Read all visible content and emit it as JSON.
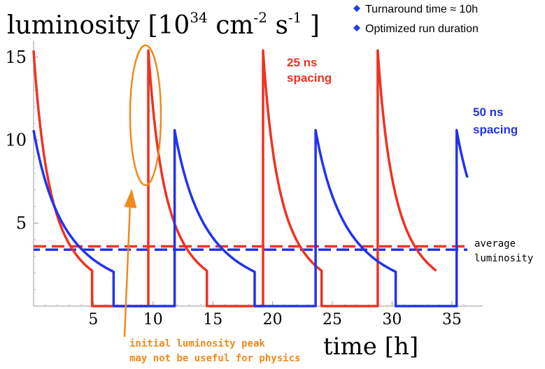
{
  "chart_data": {
    "type": "line",
    "title": "luminosity [10",
    "title_exp": "34",
    "title_unit1": " cm",
    "title_unit1_exp": "-2",
    "title_unit2": " s",
    "title_unit2_exp": "-1",
    "title_close": " ]",
    "xlabel": "time [h]",
    "ylabel": "",
    "xlim": [
      0,
      37
    ],
    "ylim": [
      0,
      16
    ],
    "x_ticks": [
      5,
      10,
      15,
      20,
      25,
      30,
      35
    ],
    "y_ticks": [
      5,
      10,
      15
    ],
    "legend": [
      "Turnaround time ≈ 10h",
      "Optimized run duration"
    ],
    "legend_color": "#1f3fd8",
    "series": [
      {
        "name": "25 ns spacing",
        "name_line1": "25 ns",
        "name_line2": "spacing",
        "color": "#ee3322",
        "peak": 15.4,
        "tau": 2.9,
        "cycles": [
          {
            "start": 0.0,
            "end": 4.9,
            "next": 9.6
          },
          {
            "start": 9.6,
            "end": 14.5,
            "next": 19.2
          },
          {
            "start": 19.2,
            "end": 24.1,
            "next": 28.8
          },
          {
            "start": 28.8,
            "end": 33.7,
            "next": null
          }
        ],
        "tail_end": 36.0
      },
      {
        "name": "50 ns spacing",
        "name_line1": "50 ns",
        "name_line2": "spacing",
        "color": "#2233ee",
        "peak": 10.6,
        "tau": 5.3,
        "cycles": [
          {
            "start": 0.0,
            "end": 6.7,
            "next": 11.8
          },
          {
            "start": 11.8,
            "end": 18.5,
            "next": 23.6
          },
          {
            "start": 23.6,
            "end": 30.3,
            "next": 35.4
          },
          {
            "start": 35.4,
            "end": 36.3,
            "next": null
          }
        ],
        "tail_end": 36.3
      }
    ],
    "average": {
      "label_line1": "average",
      "label_line2": "luminosity",
      "red_value": 3.6,
      "blue_value": 3.4
    },
    "annotation": {
      "text_line1": "initial luminosity peak",
      "text_line2": "may not be useful for physics",
      "color": "#f08a1c",
      "target_x": 9.6,
      "target_y": 11.5
    }
  }
}
